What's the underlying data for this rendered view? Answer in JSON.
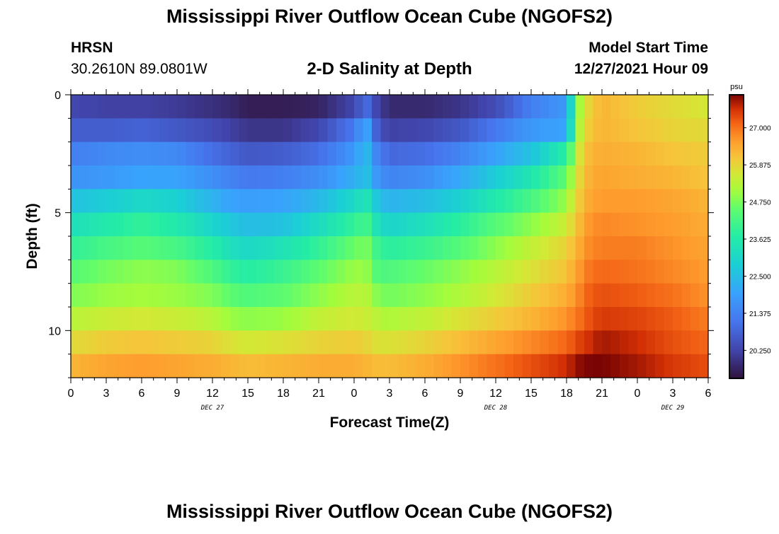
{
  "header": {
    "title": "Mississippi River Outflow Ocean Cube (NGOFS2)",
    "station": "HRSN",
    "coords": "30.2610N  89.0801W",
    "plot_title": "2-D Salinity at Depth",
    "start_label": "Model Start Time",
    "start_value": "12/27/2021 Hour 09"
  },
  "footer": {
    "title": "Mississippi River Outflow Ocean Cube (NGOFS2)"
  },
  "chart_data": {
    "type": "heatmap",
    "title": "2-D Salinity at Depth",
    "xlabel": "Forecast Time(Z)",
    "ylabel": "Depth (ft)",
    "x_tick_labels": [
      "0",
      "3",
      "6",
      "9",
      "12",
      "15",
      "18",
      "21",
      "0",
      "3",
      "6",
      "9",
      "12",
      "15",
      "18",
      "21",
      "0",
      "3",
      "6"
    ],
    "date_labels": [
      {
        "label": "DEC 27",
        "hour": 12
      },
      {
        "label": "DEC 28",
        "hour": 36
      },
      {
        "label": "DEC 29",
        "hour": 51
      }
    ],
    "x_range_hours": [
      0,
      54
    ],
    "y_ticks": [
      0,
      5,
      10
    ],
    "y_range_ft": [
      0,
      12
    ],
    "depth_levels_ft": [
      0.5,
      1.5,
      2.5,
      3.5,
      4.5,
      5.5,
      6.5,
      7.5,
      8.5,
      9.5,
      10.5,
      11.5
    ],
    "time_hours": [
      0,
      3,
      6,
      9,
      12,
      13.5,
      15,
      18,
      21,
      24,
      25,
      26,
      27,
      30,
      33,
      36,
      39,
      42,
      43,
      44,
      45,
      48,
      51,
      54
    ],
    "salinity_psu": [
      [
        20.3,
        20.2,
        20.2,
        20.1,
        19.9,
        19.8,
        19.6,
        19.6,
        19.7,
        20.3,
        21.0,
        20.2,
        19.8,
        19.8,
        20.0,
        20.4,
        21.3,
        21.8,
        25.0,
        26.0,
        26.3,
        26.0,
        25.8,
        25.6
      ],
      [
        20.7,
        20.7,
        20.8,
        20.6,
        20.4,
        20.2,
        20.0,
        20.0,
        20.3,
        21.2,
        22.1,
        20.6,
        20.2,
        20.3,
        20.6,
        21.2,
        21.8,
        22.0,
        25.2,
        26.1,
        26.3,
        26.1,
        25.9,
        25.8
      ],
      [
        21.3,
        21.5,
        21.6,
        21.5,
        21.0,
        20.8,
        20.6,
        20.7,
        21.0,
        21.8,
        22.5,
        21.3,
        20.9,
        21.0,
        21.4,
        22.0,
        22.6,
        23.8,
        25.6,
        26.3,
        26.4,
        26.3,
        26.1,
        26.0
      ],
      [
        21.7,
        21.8,
        22.0,
        22.0,
        21.6,
        21.4,
        21.2,
        21.3,
        21.6,
        22.2,
        22.6,
        21.7,
        21.4,
        21.6,
        22.1,
        22.8,
        23.5,
        24.5,
        25.8,
        26.4,
        26.5,
        26.4,
        26.3,
        26.1
      ],
      [
        22.6,
        22.8,
        23.1,
        22.9,
        22.3,
        22.0,
        21.9,
        22.0,
        22.4,
        23.1,
        23.5,
        22.6,
        22.3,
        22.5,
        22.9,
        23.6,
        24.2,
        25.0,
        26.0,
        26.5,
        26.6,
        26.6,
        26.5,
        26.3
      ],
      [
        23.3,
        23.6,
        23.9,
        23.6,
        23.0,
        22.7,
        22.5,
        22.6,
        23.2,
        23.9,
        24.2,
        23.3,
        23.0,
        23.3,
        23.8,
        24.4,
        24.9,
        25.5,
        26.2,
        26.7,
        26.8,
        26.7,
        26.6,
        26.4
      ],
      [
        23.9,
        24.2,
        24.4,
        24.2,
        23.7,
        23.3,
        23.1,
        23.4,
        23.9,
        24.6,
        24.8,
        24.0,
        23.8,
        24.0,
        24.4,
        24.9,
        25.4,
        25.9,
        26.4,
        26.8,
        26.9,
        26.9,
        26.7,
        26.5
      ],
      [
        24.4,
        24.7,
        24.9,
        24.8,
        24.3,
        23.9,
        23.7,
        24.0,
        24.5,
        25.0,
        25.0,
        24.3,
        24.3,
        24.6,
        24.9,
        25.3,
        25.7,
        26.1,
        26.6,
        27.0,
        27.1,
        27.0,
        26.8,
        26.6
      ],
      [
        24.8,
        25.0,
        25.1,
        25.0,
        24.8,
        24.5,
        24.3,
        24.5,
        24.9,
        25.3,
        25.3,
        24.8,
        24.7,
        24.9,
        25.2,
        25.6,
        26.0,
        26.4,
        26.8,
        27.2,
        27.3,
        27.2,
        27.0,
        26.7
      ],
      [
        25.3,
        25.5,
        25.6,
        25.5,
        25.3,
        25.0,
        24.9,
        25.0,
        25.4,
        25.6,
        25.5,
        25.3,
        25.2,
        25.4,
        25.7,
        26.0,
        26.3,
        26.7,
        27.0,
        27.3,
        27.5,
        27.4,
        27.2,
        26.9
      ],
      [
        25.8,
        26.0,
        26.1,
        26.0,
        25.9,
        25.7,
        25.6,
        25.7,
        25.9,
        26.0,
        25.9,
        25.7,
        25.7,
        25.9,
        26.2,
        26.5,
        26.8,
        27.1,
        27.4,
        27.6,
        27.8,
        27.6,
        27.3,
        27.1
      ],
      [
        26.3,
        26.5,
        26.6,
        26.5,
        26.4,
        26.3,
        26.2,
        26.3,
        26.4,
        26.4,
        26.3,
        26.2,
        26.2,
        26.4,
        26.7,
        27.0,
        27.3,
        27.6,
        27.9,
        28.0,
        28.0,
        27.8,
        27.5,
        27.3
      ]
    ],
    "colorbar": {
      "unit": "psu",
      "range": [
        19.4,
        28.0
      ],
      "tick_labels": [
        "27.000",
        "25.875",
        "24.750",
        "23.625",
        "22.500",
        "21.375",
        "20.250"
      ]
    },
    "grid": false,
    "legend": "colorbar-right"
  }
}
